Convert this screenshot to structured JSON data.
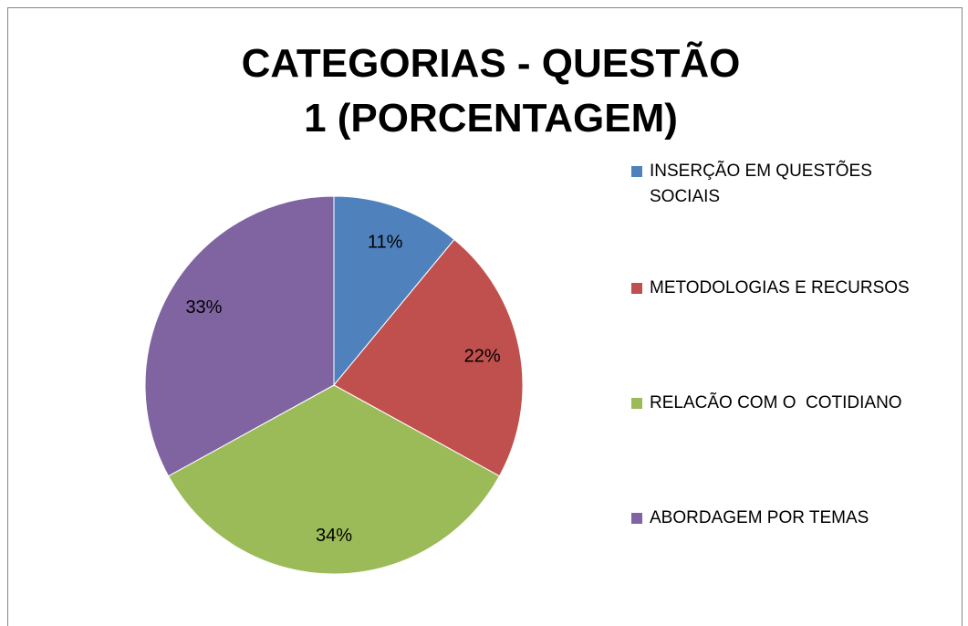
{
  "chart_data": {
    "type": "pie",
    "title": "CATEGORIAS - QUESTÃO 1 (PORCENTAGEM)",
    "categories": [
      "INSERÇÃO EM QUESTÕES SOCIAIS",
      "METODOLOGIAS E RECURSOS",
      "RELACÃO COM O  COTIDIANO",
      "ABORDAGEM POR TEMAS"
    ],
    "values": [
      11,
      22,
      34,
      33
    ],
    "value_labels": [
      "11%",
      "22%",
      "34%",
      "33%"
    ],
    "colors": [
      "#4f81bd",
      "#c0504d",
      "#9bbb59",
      "#8064a2"
    ],
    "legend": "right"
  }
}
